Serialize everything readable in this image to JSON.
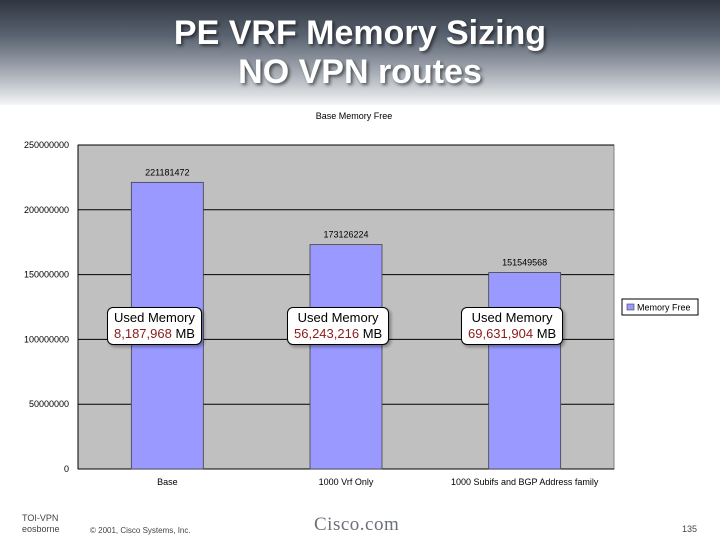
{
  "slide": {
    "title_line1": "PE VRF Memory Sizing",
    "title_line2": "NO VPN routes",
    "footer_left_line1": "TOI-VPN",
    "footer_left_line2": "eosborne",
    "copyright": "© 2001, Cisco Systems, Inc.",
    "brand": "Cisco.com",
    "page_number": "135"
  },
  "callouts": [
    {
      "prefix": "Used Memory",
      "number": "8,187,968",
      "unit": " MB"
    },
    {
      "prefix": "Used Memory",
      "number": "56,243,216",
      "unit": " MB"
    },
    {
      "prefix": "Used Memory",
      "number": "69,631,904",
      "unit": " MB"
    }
  ],
  "chart_data": {
    "type": "bar",
    "title": "Base Memory Free",
    "categories": [
      "Base",
      "1000 Vrf Only",
      "1000 Subifs and BGP Address family"
    ],
    "series": [
      {
        "name": "Memory Free",
        "values": [
          221181472,
          173126224,
          151549568
        ]
      }
    ],
    "data_labels": [
      "221181472",
      "173126224",
      "151549568"
    ],
    "ylim": [
      0,
      250000000
    ],
    "yticks": [
      "0",
      "50000000",
      "100000000",
      "150000000",
      "200000000",
      "250000000"
    ],
    "grid": true,
    "legend_position": "right",
    "colors": {
      "bar": "#9999ff",
      "plot_bg": "#c0c0c0"
    }
  }
}
